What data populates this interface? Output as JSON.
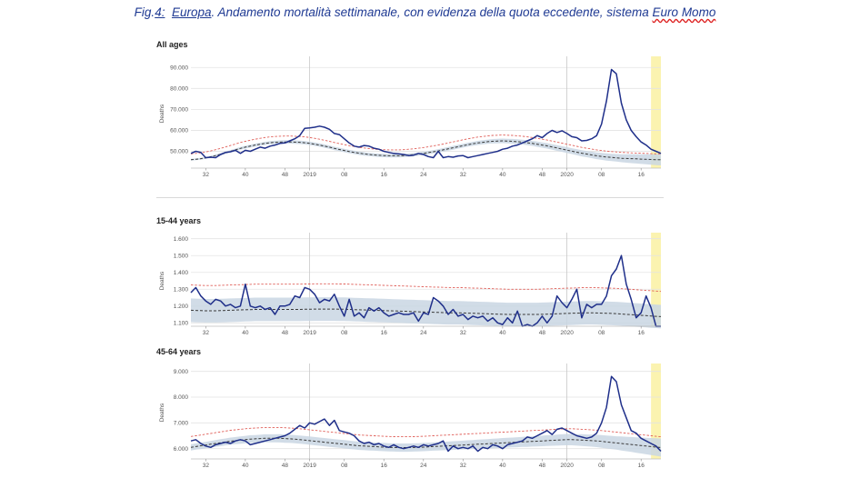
{
  "caption": {
    "prefix": "Fig.",
    "num": "4:",
    "region": "Europa",
    "rest": ". Andamento mortalità settimanale, con evidenza della quota eccedente, sistema ",
    "source": "Euro Momo"
  },
  "colors": {
    "observed": "#1f2f8a",
    "baseline": "#3a3a3a",
    "threshold": "#e0605a",
    "band": "#c9d6e3",
    "highlight": "#fbf3b0",
    "grid": "#e3e3e3"
  },
  "chart_data": [
    {
      "type": "line",
      "title": "All ages",
      "ylabel": "Deaths",
      "ylim": [
        42000,
        94000
      ],
      "yticks": [
        50000,
        60000,
        70000,
        80000,
        90000
      ],
      "ytick_labels": [
        "50.000",
        "60.000",
        "70.000",
        "80.000",
        "90.000"
      ],
      "observed": [
        49000,
        50000,
        49500,
        47000,
        47200,
        47000,
        48500,
        49500,
        49800,
        50500,
        49000,
        50500,
        50000,
        51000,
        52000,
        51500,
        52500,
        53000,
        53800,
        54000,
        55000,
        56000,
        57500,
        61000,
        61200,
        61500,
        62000,
        61500,
        60500,
        58500,
        58000,
        56000,
        54000,
        52500,
        52000,
        52800,
        52500,
        51500,
        51000,
        50000,
        49500,
        49000,
        48800,
        48500,
        48000,
        48200,
        49000,
        48500,
        47500,
        47000,
        50000,
        47000,
        47500,
        47200,
        47800,
        48000,
        47000,
        47500,
        48000,
        48500,
        49000,
        49500,
        50000,
        51000,
        51500,
        52500,
        53000,
        54000,
        55000,
        56000,
        57500,
        56500,
        58500,
        60000,
        59000,
        59800,
        58500,
        57000,
        56500,
        55000,
        55200,
        56000,
        57500,
        63000,
        74000,
        89000,
        87000,
        73000,
        65000,
        60000,
        57000,
        54500,
        53000,
        51000,
        50000,
        49000
      ],
      "baseline": [
        46000,
        46200,
        46500,
        46900,
        47400,
        48000,
        48600,
        49300,
        50000,
        50700,
        51400,
        52000,
        52500,
        53000,
        53400,
        53800,
        54100,
        54300,
        54400,
        54500,
        54500,
        54400,
        54300,
        54100,
        53800,
        53400,
        53000,
        52500,
        52000,
        51400,
        50900,
        50400,
        49900,
        49500,
        49100,
        48800,
        48500,
        48300,
        48100,
        48000,
        47900,
        47900,
        47900,
        48000,
        48200,
        48400,
        48700,
        49000,
        49400,
        49800,
        50200,
        50700,
        51200,
        51700,
        52200,
        52700,
        53200,
        53600,
        54000,
        54300,
        54600,
        54800,
        54900,
        55000,
        54900,
        54800,
        54600,
        54400,
        54100,
        53800,
        53400,
        53000,
        52600,
        52100,
        51600,
        51100,
        50600,
        50100,
        49600,
        49100,
        48700,
        48300,
        47900,
        47600,
        47300,
        47100,
        46900,
        46700,
        46600,
        46500,
        46400,
        46300,
        46200,
        46100,
        46000,
        46000
      ],
      "band_width": [
        400,
        400,
        450,
        450,
        500,
        500,
        550,
        550,
        600,
        600,
        650,
        650,
        700,
        700,
        700,
        750,
        750,
        750,
        800,
        800,
        800,
        800,
        800,
        800,
        800,
        800,
        800,
        800,
        800,
        800,
        800,
        800,
        800,
        800,
        800,
        800,
        800,
        800,
        800,
        800,
        800,
        800,
        800,
        800,
        800,
        800,
        800,
        800,
        800,
        800,
        850,
        850,
        850,
        900,
        900,
        900,
        950,
        950,
        1000,
        1000,
        1000,
        1050,
        1050,
        1100,
        1100,
        1100,
        1150,
        1150,
        1200,
        1200,
        1250,
        1250,
        1300,
        1300,
        1350,
        1350,
        1400,
        1400,
        1450,
        1500,
        1500,
        1550,
        1600,
        1650,
        1700,
        1750,
        1800,
        1900,
        2000,
        2100,
        2200,
        2300,
        2400,
        2500,
        2600,
        2700
      ],
      "threshold_offset": 2800
    },
    {
      "type": "line",
      "title": "15-44 years",
      "ylabel": "Deaths",
      "ylim": [
        1080,
        1620
      ],
      "yticks": [
        1100,
        1200,
        1300,
        1400,
        1500,
        1600
      ],
      "ytick_labels": [
        "1.100",
        "1.200",
        "1.300",
        "1.400",
        "1.500",
        "1.600"
      ],
      "observed": [
        1280,
        1310,
        1260,
        1230,
        1210,
        1240,
        1230,
        1200,
        1210,
        1190,
        1200,
        1330,
        1200,
        1190,
        1200,
        1180,
        1190,
        1150,
        1200,
        1200,
        1210,
        1260,
        1250,
        1310,
        1300,
        1270,
        1220,
        1240,
        1230,
        1270,
        1200,
        1140,
        1240,
        1140,
        1160,
        1130,
        1190,
        1170,
        1190,
        1160,
        1140,
        1150,
        1160,
        1150,
        1150,
        1160,
        1110,
        1160,
        1150,
        1250,
        1230,
        1200,
        1150,
        1180,
        1140,
        1150,
        1120,
        1140,
        1130,
        1140,
        1110,
        1130,
        1100,
        1090,
        1130,
        1100,
        1170,
        1080,
        1090,
        1080,
        1100,
        1140,
        1100,
        1140,
        1260,
        1220,
        1190,
        1240,
        1300,
        1130,
        1210,
        1190,
        1210,
        1210,
        1260,
        1380,
        1420,
        1500,
        1330,
        1240,
        1130,
        1160,
        1260,
        1190,
        1080,
        1080
      ],
      "baseline": [
        1175,
        1174,
        1173,
        1172,
        1172,
        1172,
        1173,
        1174,
        1175,
        1176,
        1177,
        1178,
        1179,
        1180,
        1180,
        1180,
        1180,
        1180,
        1180,
        1180,
        1180,
        1180,
        1180,
        1181,
        1181,
        1182,
        1182,
        1182,
        1182,
        1182,
        1181,
        1181,
        1180,
        1179,
        1178,
        1177,
        1176,
        1175,
        1174,
        1173,
        1172,
        1171,
        1170,
        1169,
        1168,
        1167,
        1166,
        1165,
        1164,
        1163,
        1162,
        1161,
        1160,
        1160,
        1160,
        1159,
        1158,
        1157,
        1156,
        1155,
        1154,
        1153,
        1152,
        1151,
        1150,
        1150,
        1150,
        1150,
        1150,
        1150,
        1150,
        1151,
        1152,
        1153,
        1154,
        1155,
        1156,
        1157,
        1158,
        1159,
        1160,
        1160,
        1159,
        1158,
        1157,
        1156,
        1155,
        1153,
        1151,
        1149,
        1147,
        1145,
        1143,
        1141,
        1139,
        1137
      ],
      "band_width": [
        70,
        70,
        70,
        70,
        70,
        70,
        70,
        70,
        70,
        70,
        70,
        70,
        70,
        70,
        70,
        70,
        70,
        70,
        70,
        70,
        70,
        70,
        70,
        70,
        70,
        70,
        70,
        70,
        70,
        70,
        70,
        70,
        70,
        70,
        70,
        70,
        70,
        70,
        70,
        70,
        70,
        70,
        70,
        70,
        70,
        70,
        70,
        70,
        70,
        70,
        70,
        70,
        70,
        70,
        70,
        70,
        70,
        70,
        70,
        70,
        70,
        70,
        70,
        70,
        70,
        70,
        70,
        70,
        70,
        70,
        70,
        70,
        70,
        70,
        70,
        70,
        70,
        70,
        70,
        70,
        70,
        70,
        70,
        70,
        70,
        70,
        70,
        70,
        70,
        70,
        70,
        70,
        70,
        70,
        70,
        70
      ],
      "threshold_offset": 150
    },
    {
      "type": "line",
      "title": "45-64 years",
      "ylabel": "Deaths",
      "ylim": [
        5600,
        9200
      ],
      "yticks": [
        6000,
        7000,
        8000,
        9000
      ],
      "ytick_labels": [
        "6.000",
        "7.000",
        "8.000",
        "9.000"
      ],
      "observed": [
        6300,
        6350,
        6200,
        6100,
        6050,
        6150,
        6200,
        6250,
        6200,
        6300,
        6350,
        6300,
        6150,
        6200,
        6250,
        6300,
        6350,
        6400,
        6450,
        6500,
        6600,
        6750,
        6900,
        6800,
        7000,
        6950,
        7050,
        7150,
        6900,
        7100,
        6700,
        6650,
        6600,
        6500,
        6300,
        6200,
        6250,
        6150,
        6200,
        6100,
        6050,
        6150,
        6050,
        6000,
        6050,
        6100,
        6050,
        6150,
        6100,
        6150,
        6200,
        6300,
        5900,
        6100,
        6000,
        6050,
        6000,
        6100,
        5900,
        6050,
        6000,
        6150,
        6100,
        6000,
        6150,
        6200,
        6250,
        6300,
        6450,
        6400,
        6500,
        6600,
        6700,
        6550,
        6750,
        6800,
        6700,
        6600,
        6500,
        6450,
        6400,
        6450,
        6600,
        7000,
        7600,
        8800,
        8600,
        7700,
        7200,
        6700,
        6600,
        6400,
        6300,
        6200,
        6100,
        5900
      ],
      "baseline": [
        6050,
        6080,
        6110,
        6140,
        6170,
        6200,
        6230,
        6260,
        6290,
        6310,
        6330,
        6350,
        6370,
        6380,
        6390,
        6400,
        6400,
        6400,
        6400,
        6390,
        6380,
        6370,
        6350,
        6330,
        6310,
        6290,
        6270,
        6250,
        6230,
        6210,
        6190,
        6170,
        6150,
        6130,
        6110,
        6100,
        6090,
        6080,
        6070,
        6060,
        6050,
        6045,
        6040,
        6040,
        6040,
        6045,
        6050,
        6060,
        6070,
        6080,
        6090,
        6100,
        6110,
        6120,
        6130,
        6140,
        6150,
        6160,
        6170,
        6180,
        6190,
        6200,
        6210,
        6220,
        6230,
        6240,
        6250,
        6260,
        6270,
        6280,
        6290,
        6300,
        6310,
        6320,
        6330,
        6340,
        6350,
        6350,
        6340,
        6330,
        6320,
        6310,
        6300,
        6280,
        6260,
        6240,
        6220,
        6200,
        6180,
        6160,
        6140,
        6120,
        6100,
        6080,
        6060,
        6040
      ],
      "band_width": [
        120,
        120,
        125,
        125,
        130,
        130,
        135,
        135,
        140,
        140,
        145,
        145,
        150,
        150,
        150,
        155,
        155,
        155,
        160,
        160,
        160,
        160,
        160,
        160,
        160,
        160,
        160,
        160,
        160,
        160,
        160,
        160,
        160,
        160,
        160,
        160,
        160,
        160,
        160,
        160,
        160,
        160,
        160,
        160,
        160,
        160,
        160,
        160,
        160,
        160,
        165,
        165,
        165,
        170,
        170,
        170,
        175,
        175,
        180,
        180,
        180,
        185,
        185,
        190,
        190,
        190,
        195,
        195,
        200,
        200,
        205,
        205,
        210,
        210,
        215,
        215,
        220,
        220,
        225,
        230,
        230,
        235,
        240,
        245,
        250,
        255,
        260,
        270,
        280,
        290,
        300,
        310,
        320,
        330,
        340,
        350
      ],
      "threshold_offset": 420
    }
  ],
  "x_ticks": [
    {
      "label": "32",
      "index": 3
    },
    {
      "label": "40",
      "index": 11
    },
    {
      "label": "48",
      "index": 19
    },
    {
      "label": "2019",
      "index": 24
    },
    {
      "label": "08",
      "index": 31
    },
    {
      "label": "16",
      "index": 39
    },
    {
      "label": "24",
      "index": 47
    },
    {
      "label": "32",
      "index": 55
    },
    {
      "label": "40",
      "index": 63
    },
    {
      "label": "48",
      "index": 71
    },
    {
      "label": "2020",
      "index": 76
    },
    {
      "label": "08",
      "index": 83
    },
    {
      "label": "16",
      "index": 91
    }
  ],
  "highlight_from_index": 93,
  "year_divider_indices": [
    24,
    76
  ]
}
